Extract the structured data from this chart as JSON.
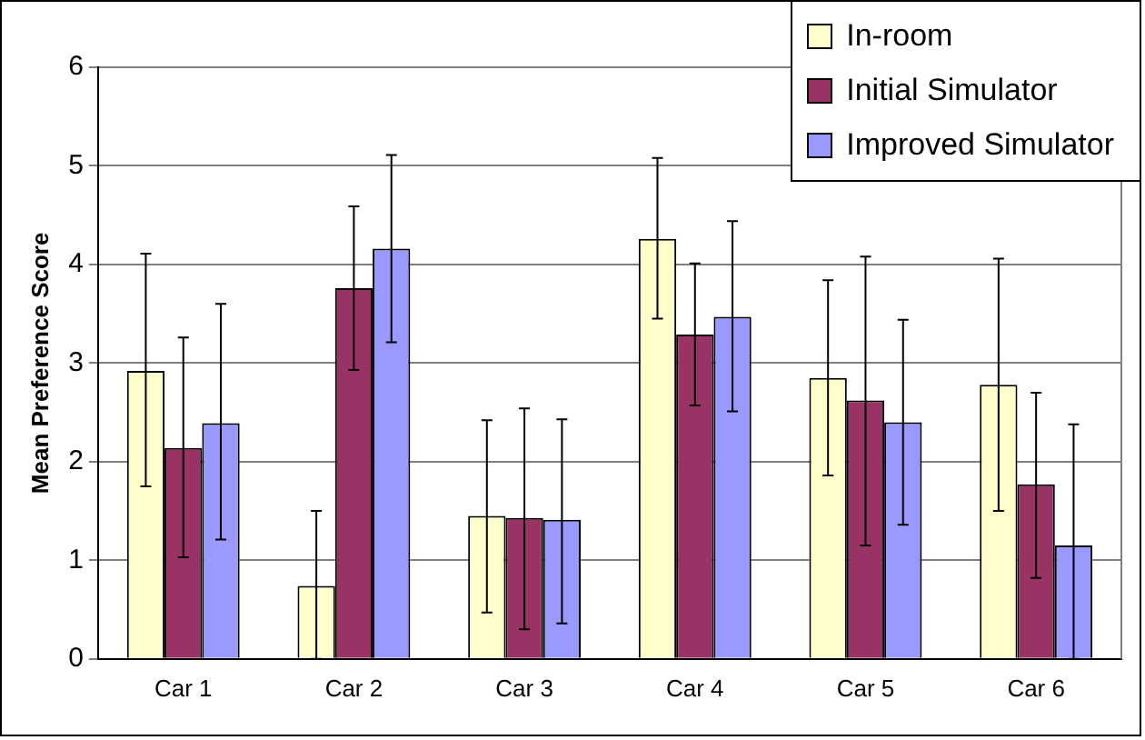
{
  "chart_data": {
    "type": "bar",
    "ylabel": "Mean Preference Score",
    "categories": [
      "Car 1",
      "Car 2",
      "Car 3",
      "Car 4",
      "Car 5",
      "Car 6"
    ],
    "series": [
      {
        "name": "In-room",
        "color": "#ffffcc",
        "values": [
          2.92,
          0.74,
          1.45,
          4.26,
          2.85,
          2.78
        ],
        "errors": [
          [
            1.75,
            4.11
          ],
          [
            0,
            1.5
          ],
          [
            0.47,
            2.42
          ],
          [
            3.45,
            5.08
          ],
          [
            1.86,
            3.84
          ],
          [
            1.5,
            4.06
          ]
        ]
      },
      {
        "name": "Initial Simulator",
        "color": "#993366",
        "values": [
          2.14,
          3.76,
          1.43,
          3.29,
          2.62,
          1.77
        ],
        "errors": [
          [
            1.03,
            3.26
          ],
          [
            2.93,
            4.59
          ],
          [
            0.3,
            2.54
          ],
          [
            2.57,
            4.01
          ],
          [
            1.15,
            4.08
          ],
          [
            0.82,
            2.7
          ]
        ]
      },
      {
        "name": "Improved Simulator",
        "color": "#9999ff",
        "values": [
          2.39,
          4.16,
          1.41,
          3.47,
          2.4,
          1.15
        ],
        "errors": [
          [
            1.21,
            3.6
          ],
          [
            3.21,
            5.11
          ],
          [
            0.36,
            2.43
          ],
          [
            2.51,
            4.44
          ],
          [
            1.36,
            3.44
          ],
          [
            0,
            2.38
          ]
        ]
      }
    ],
    "ylim": [
      0,
      6
    ],
    "yticks": [
      0,
      1,
      2,
      3,
      4,
      5,
      6
    ],
    "grid": "y",
    "legend": "top right"
  }
}
